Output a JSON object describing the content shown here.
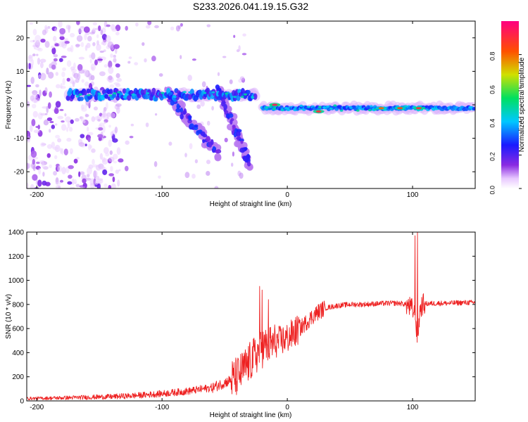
{
  "figure_title": "S233.2026.041.19.15.G32",
  "chart_data": [
    {
      "type": "heatmap",
      "title": "S233.2026.041.19.15.G32",
      "xlabel": "Height of straight line (km)",
      "ylabel": "Frequency (Hz)",
      "xlim": [
        -208,
        150
      ],
      "ylim": [
        -25,
        25
      ],
      "x_ticks": [
        -200,
        -100,
        0,
        100
      ],
      "x_tick_labels": [
        "-200",
        "-100",
        "0",
        "100"
      ],
      "y_ticks": [
        20,
        10,
        0,
        -10,
        -20
      ],
      "y_tick_labels": [
        "20",
        "10",
        "0",
        "-10",
        "-20"
      ],
      "colorbar": {
        "label": "Normalized spectral amplitude",
        "range": [
          0,
          1
        ],
        "ticks": [
          0,
          0.2,
          0.4,
          0.6,
          0.8
        ],
        "tick_labels": [
          "0.0",
          "0.2",
          "0.4",
          "0.6",
          "0.8"
        ],
        "colormap": "rainbow (violet-blue-cyan-green-yellow-red-magenta)"
      },
      "ridge_segments": [
        {
          "x_start": -175,
          "x_end": -25,
          "frequency": 3
        },
        {
          "x_start": -20,
          "x_end": 150,
          "frequency": -1
        }
      ],
      "dispersed_branches": [
        {
          "x_start": -95,
          "x_end": -55,
          "freq_start": 3,
          "freq_end": -15
        },
        {
          "x_start": -55,
          "x_end": -30,
          "freq_start": 5,
          "freq_end": -18
        }
      ],
      "hotspots": [
        {
          "x": -10,
          "frequency": 0,
          "amplitude": 0.95
        },
        {
          "x": 25,
          "frequency": -2,
          "amplitude": 0.9
        },
        {
          "x": 75,
          "frequency": -1,
          "amplitude": 0.8
        },
        {
          "x": 90,
          "frequency": -1,
          "amplitude": 0.85
        },
        {
          "x": 105,
          "frequency": -1,
          "amplitude": 0.9
        }
      ]
    },
    {
      "type": "line",
      "xlabel": "Height of straight line (km)",
      "ylabel": "SNR (10 * v/v)",
      "xlim": [
        -208,
        150
      ],
      "ylim": [
        0,
        1400
      ],
      "x_ticks": [
        -200,
        -100,
        0,
        100
      ],
      "x_tick_labels": [
        "-200",
        "-100",
        "0",
        "100"
      ],
      "y_ticks": [
        0,
        200,
        400,
        600,
        800,
        1000,
        1200,
        1400
      ],
      "y_tick_labels": [
        "0",
        "200",
        "400",
        "600",
        "800",
        "1000",
        "1200",
        "1400"
      ],
      "series": [
        {
          "name": "SNR",
          "color": "#ee2222",
          "x": [
            -208,
            -180,
            -160,
            -140,
            -120,
            -100,
            -80,
            -60,
            -50,
            -40,
            -35,
            -30,
            -25,
            -22,
            -20,
            -15,
            -10,
            -5,
            0,
            5,
            10,
            15,
            20,
            25,
            30,
            40,
            50,
            60,
            70,
            80,
            90,
            95,
            100,
            102,
            104,
            106,
            108,
            110,
            120,
            130,
            140,
            150
          ],
          "y": [
            20,
            25,
            30,
            35,
            45,
            60,
            80,
            110,
            150,
            200,
            260,
            320,
            380,
            420,
            440,
            460,
            480,
            500,
            520,
            560,
            600,
            650,
            700,
            740,
            770,
            790,
            800,
            800,
            805,
            810,
            810,
            800,
            760,
            700,
            520,
            760,
            800,
            805,
            810,
            810,
            815,
            815
          ]
        }
      ],
      "spikes": [
        {
          "x": -22,
          "y": 950
        },
        {
          "x": -20,
          "y": 920
        },
        {
          "x": -15,
          "y": 840
        },
        {
          "x": 102,
          "y": 1370
        },
        {
          "x": 104,
          "y": 1400
        }
      ]
    }
  ]
}
